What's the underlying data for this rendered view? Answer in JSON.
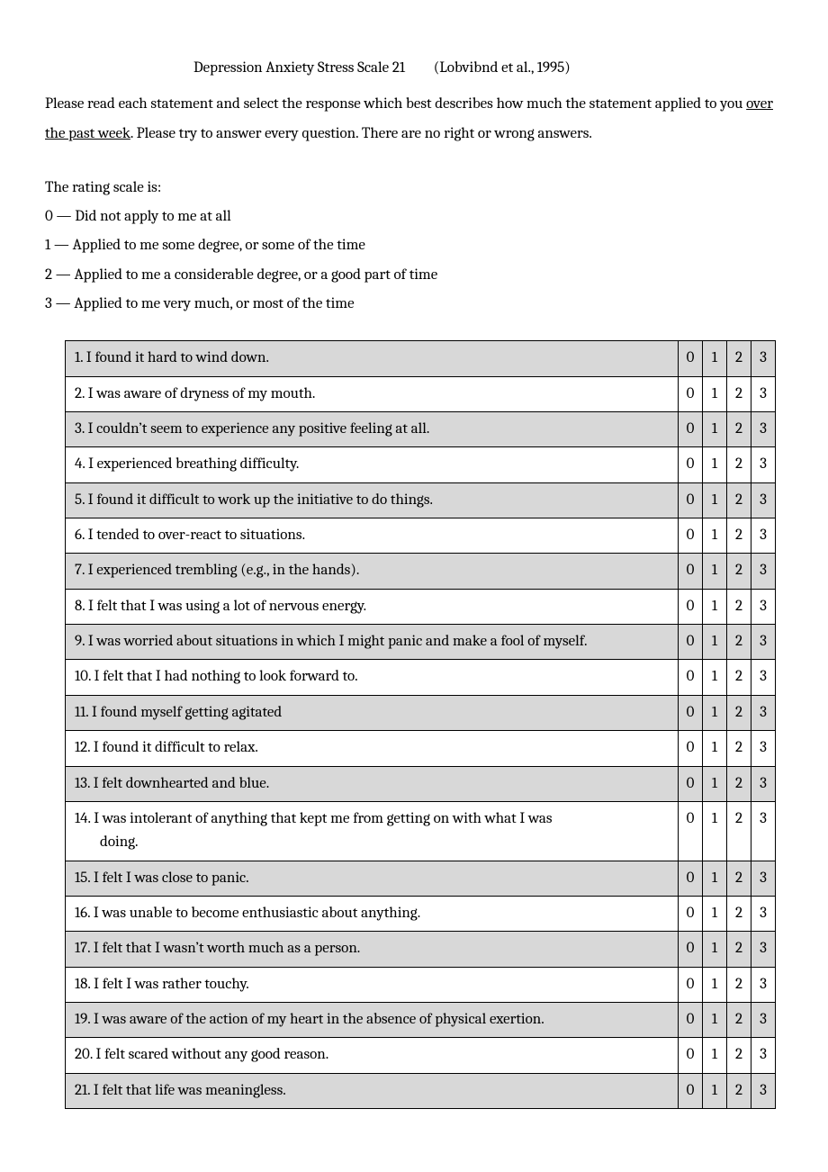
{
  "title": "Depression Anxiety Stress Scale 21",
  "citation": "(Lobvibnd et al., 1995)",
  "instructions_pre": "Please read each statement and select the response which best describes how much the statement applied to you ",
  "instructions_underline": " over the past week",
  "instructions_post": ".  Please try to answer every question. There are no right or wrong answers.",
  "scale_intro": "The rating scale is:",
  "scale": [
    "0 — Did not apply to me at all",
    "1 — Applied to me some degree, or some of the time",
    "2 — Applied to me a considerable degree, or a good part of time",
    "3 — Applied to me very much, or most of the time"
  ],
  "options": [
    "0",
    "1",
    "2",
    "3"
  ],
  "row_shade_color": "#d8d8d8",
  "questions": [
    {
      "n": 1,
      "text": "I found it hard to wind down.",
      "shaded": true
    },
    {
      "n": 2,
      "text": "I was aware of dryness of my mouth.",
      "shaded": false
    },
    {
      "n": 3,
      "text": "I couldn’t seem to experience any positive feeling at all.",
      "shaded": true
    },
    {
      "n": 4,
      "text": "I experienced breathing difficulty.",
      "shaded": false
    },
    {
      "n": 5,
      "text": "I found it difficult to work up the initiative to do things.",
      "shaded": true
    },
    {
      "n": 6,
      "text": "I tended to over-react to situations.",
      "shaded": false
    },
    {
      "n": 7,
      "text": "I experienced trembling (e.g., in the hands).",
      "shaded": true
    },
    {
      "n": 8,
      "text": "I felt that I was using a lot of nervous energy.",
      "shaded": false
    },
    {
      "n": 9,
      "text": "I was worried about situations in which I might panic and make a fool of myself.",
      "shaded": true
    },
    {
      "n": 10,
      "text": "I felt that I had nothing to look forward to.",
      "shaded": false
    },
    {
      "n": 11,
      "text": "I found myself getting agitated",
      "shaded": true
    },
    {
      "n": 12,
      "text": "I found it difficult to relax.",
      "shaded": false
    },
    {
      "n": 13,
      "text": "I felt downhearted and blue.",
      "shaded": true
    },
    {
      "n": 14,
      "text": "I was intolerant of anything that kept me from getting on with what I was",
      "text2": "doing.",
      "shaded": false
    },
    {
      "n": 15,
      "text": "I felt I was close to panic.",
      "shaded": true
    },
    {
      "n": 16,
      "text": "I was unable to become enthusiastic about anything.",
      "shaded": false
    },
    {
      "n": 17,
      "text": "I felt that I wasn’t worth much as a person.",
      "shaded": true
    },
    {
      "n": 18,
      "text": "I felt I was rather touchy.",
      "shaded": false
    },
    {
      "n": 19,
      "text": "I was aware of the action of my heart in the absence of physical exertion.",
      "shaded": true,
      "nospace": true
    },
    {
      "n": 20,
      "text": "I felt scared without any good reason.",
      "shaded": false
    },
    {
      "n": 21,
      "text": "I felt that life was meaningless.",
      "shaded": true
    }
  ]
}
